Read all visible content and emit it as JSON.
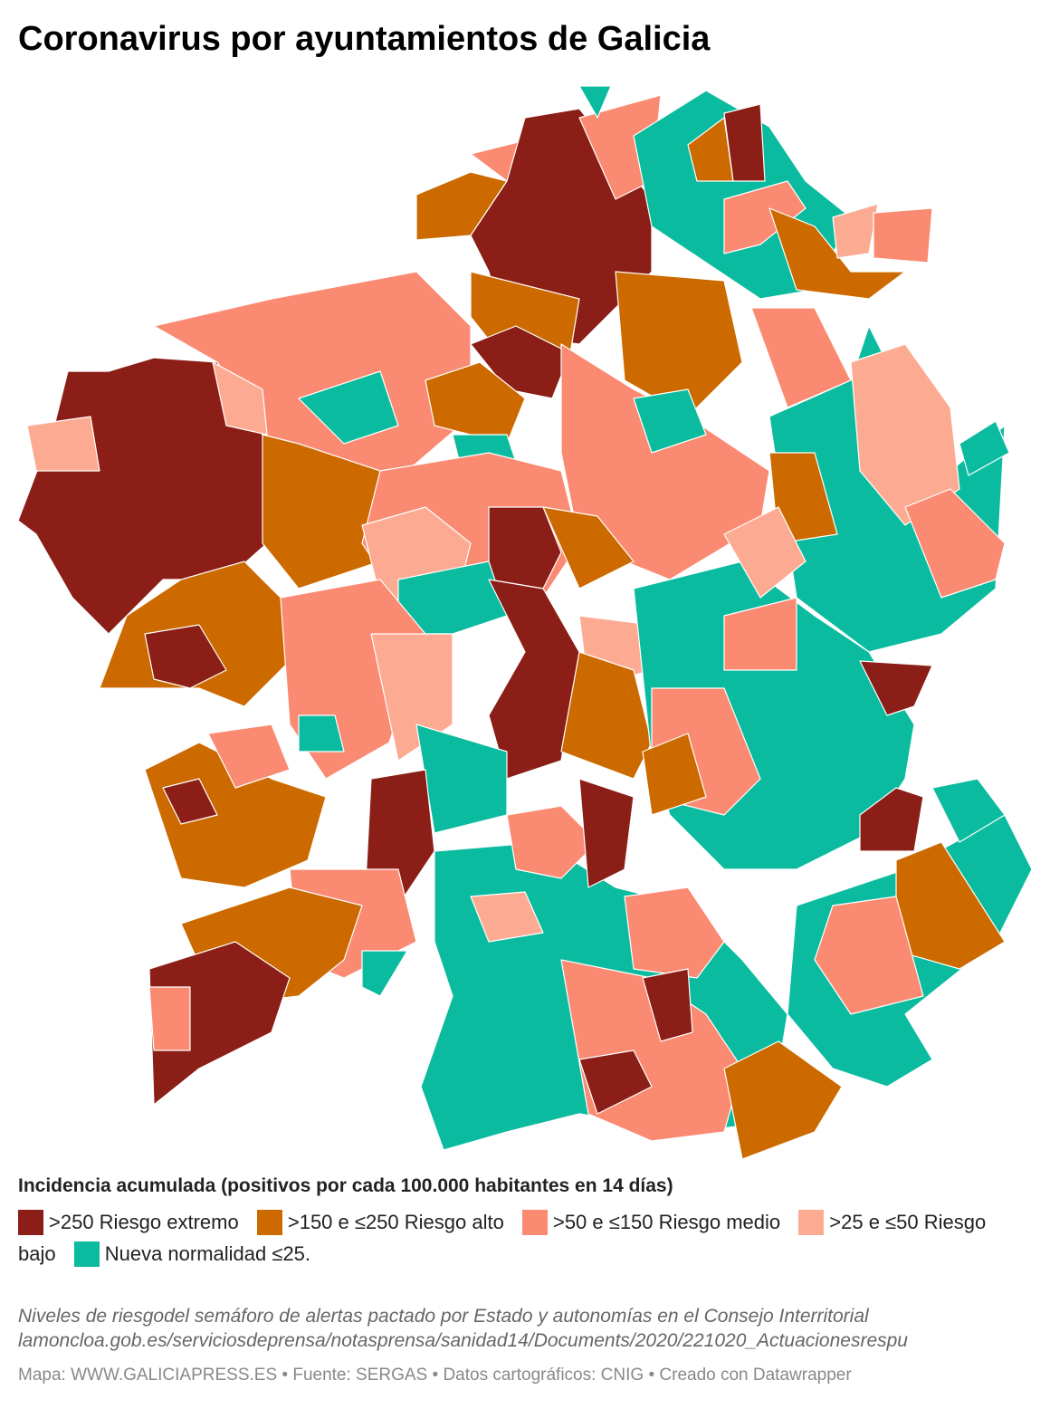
{
  "title": "Coronavirus por ayuntamientos de Galicia",
  "legend": {
    "title": "Incidencia acumulada (positivos por cada 100.000 habitantes en 14 días)",
    "items": [
      {
        "label": ">250 Riesgo extremo",
        "color": "#8b1e16"
      },
      {
        "label": ">150 e ≤250 Riesgo alto",
        "color": "#cc6a00"
      },
      {
        "label": ">50 e ≤150 Riesgo medio",
        "color": "#fa8a72"
      },
      {
        "label": ">25 e ≤50 Riesgo bajo",
        "color": "#fcab92"
      },
      {
        "label": "Nueva normalidad ≤25.",
        "color": "#0bbb9f"
      }
    ]
  },
  "notes": [
    "Niveles de riesgodel semáforo de alertas pactado por Estado y autonomías en el Consejo Interritorial",
    "lamoncloa.gob.es/serviciosdeprensa/notasprensa/sanidad14/Documents/2020/221020_Actuacionesrespu"
  ],
  "footer": "Mapa: WWW.GALICIAPRESS.ES • Fuente: SERGAS • Datos cartográficos: CNIG • Creado con Datawrapper"
}
